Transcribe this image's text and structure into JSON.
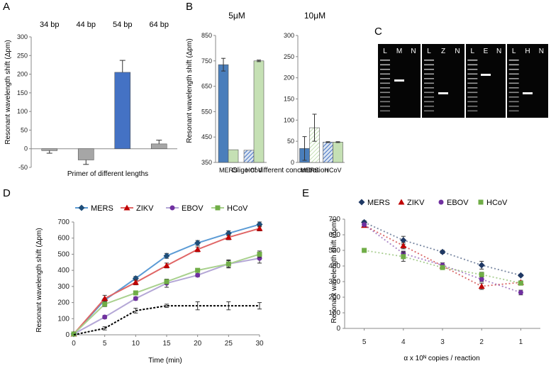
{
  "panels": {
    "A": "A",
    "B": "B",
    "C": "C",
    "D": "D",
    "E": "E"
  },
  "chart_data": [
    {
      "id": "A",
      "type": "bar",
      "categories": [
        "34 bp",
        "44 bp",
        "54 bp",
        "64 bp"
      ],
      "values": [
        -5,
        -30,
        205,
        13
      ],
      "errors": [
        7,
        12,
        32,
        10
      ],
      "colors": [
        "#a6a6a6",
        "#a6a6a6",
        "#4472c4",
        "#a6a6a6"
      ],
      "xlabel": "Primer of different lengths",
      "ylabel": "Resonant wavelength shift (Δpm)",
      "ylim": [
        -50,
        300
      ],
      "yticks": [
        -50,
        0,
        50,
        100,
        150,
        200,
        250,
        300
      ]
    },
    {
      "id": "B",
      "type": "bar",
      "xlabel": "Oligo of different concentration",
      "ylabel": "Resonant wavelength shift (Δpm)",
      "subplots": [
        {
          "title": "5μM",
          "categories": [
            "MERS",
            "HCoV"
          ],
          "ylim": [
            350,
            850
          ],
          "yticks": [
            350,
            450,
            550,
            650,
            750,
            850
          ],
          "bars": [
            {
              "category": "MERS",
              "value": 735,
              "error": 25,
              "pattern": "solid-blue"
            },
            {
              "category": "MERS",
              "value": 400,
              "error": 0,
              "pattern": "solid-green"
            },
            {
              "category": "HCoV",
              "value": 398,
              "error": 0,
              "pattern": "hatched-blue"
            },
            {
              "category": "HCoV",
              "value": 750,
              "error": 3,
              "pattern": "solid-green"
            }
          ]
        },
        {
          "title": "10μM",
          "categories": [
            "MERS",
            "HCoV"
          ],
          "ylim": [
            0,
            300
          ],
          "yticks": [
            0,
            50,
            100,
            150,
            200,
            250,
            300
          ],
          "bars": [
            {
              "category": "MERS",
              "value": 33,
              "error": 28,
              "pattern": "solid-blue"
            },
            {
              "category": "MERS",
              "value": 82,
              "error": 32,
              "pattern": "hatched-green"
            },
            {
              "category": "HCoV",
              "value": 48,
              "error": 1,
              "pattern": "hatched-blue"
            },
            {
              "category": "HCoV",
              "value": 48,
              "error": 1,
              "pattern": "solid-green"
            }
          ]
        }
      ]
    },
    {
      "id": "C",
      "type": "gel",
      "lanes": [
        {
          "panel": 1,
          "labels": [
            "L",
            "M",
            "N"
          ]
        },
        {
          "panel": 2,
          "labels": [
            "L",
            "Z",
            "N"
          ]
        },
        {
          "panel": 3,
          "labels": [
            "L",
            "E",
            "N"
          ]
        },
        {
          "panel": 4,
          "labels": [
            "L",
            "H",
            "N"
          ]
        }
      ]
    },
    {
      "id": "D",
      "type": "line",
      "x": [
        0,
        5,
        10,
        15,
        20,
        25,
        30
      ],
      "xlabel": "Time (min)",
      "ylabel": "Resonant wavelength shift (Δpm)",
      "xlim": [
        0,
        30
      ],
      "ylim": [
        0,
        700
      ],
      "yticks": [
        0,
        100,
        200,
        300,
        400,
        500,
        600,
        700
      ],
      "legend": "top",
      "series": [
        {
          "name": "MERS",
          "color": "#1f4e79",
          "line": "#5b9bd5",
          "marker": "diamond",
          "values": [
            5,
            215,
            350,
            490,
            570,
            630,
            685
          ],
          "errors": [
            0,
            10,
            12,
            15,
            15,
            15,
            15
          ]
        },
        {
          "name": "ZIKV",
          "color": "#c00000",
          "line": "#e06666",
          "marker": "triangle",
          "values": [
            5,
            225,
            325,
            430,
            530,
            605,
            660
          ],
          "errors": [
            0,
            20,
            15,
            15,
            15,
            15,
            15
          ]
        },
        {
          "name": "EBOV",
          "color": "#7030a0",
          "line": "#b4a7d6",
          "marker": "circle",
          "values": [
            5,
            110,
            225,
            320,
            370,
            440,
            475
          ],
          "errors": [
            0,
            10,
            10,
            25,
            10,
            25,
            30
          ]
        },
        {
          "name": "HCoV",
          "color": "#70ad47",
          "line": "#a9d18e",
          "marker": "square",
          "values": [
            5,
            190,
            260,
            330,
            400,
            440,
            500
          ],
          "errors": [
            0,
            15,
            10,
            15,
            10,
            20,
            20
          ]
        },
        {
          "name": "",
          "color": "#000000",
          "line": "#000000",
          "marker": "none",
          "dash": true,
          "values": [
            0,
            40,
            150,
            180,
            180,
            180,
            180
          ],
          "errors": [
            0,
            10,
            15,
            10,
            25,
            25,
            20
          ]
        }
      ]
    },
    {
      "id": "E",
      "type": "scatter",
      "categories": [
        "5",
        "4",
        "3",
        "2",
        "1"
      ],
      "xlabel": "α x 10ᴺ copies / reaction",
      "ylabel": "Resonant wavelength shift (Δpm)",
      "ylim": [
        0,
        700
      ],
      "yticks": [
        0,
        100,
        200,
        300,
        400,
        500,
        600,
        700
      ],
      "legend": "top",
      "trendlines": true,
      "series": [
        {
          "name": "MERS",
          "color": "#1f3864",
          "marker": "diamond",
          "values": [
            680,
            565,
            490,
            405,
            340
          ],
          "errors": [
            10,
            25,
            10,
            25,
            8
          ]
        },
        {
          "name": "ZIKV",
          "color": "#c00000",
          "marker": "triangle",
          "values": [
            660,
            530,
            400,
            270,
            295
          ],
          "errors": [
            10,
            20,
            10,
            20,
            10
          ]
        },
        {
          "name": "EBOV",
          "color": "#7030a0",
          "marker": "circle",
          "values": [
            665,
            480,
            405,
            315,
            230
          ],
          "errors": [
            10,
            15,
            15,
            15,
            15
          ]
        },
        {
          "name": "HCoV",
          "color": "#70ad47",
          "marker": "square",
          "values": [
            500,
            460,
            390,
            345,
            290
          ],
          "errors": [
            8,
            30,
            10,
            15,
            10
          ]
        }
      ]
    }
  ]
}
